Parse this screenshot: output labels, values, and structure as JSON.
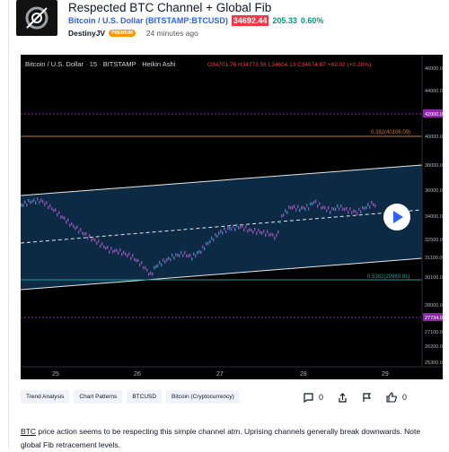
{
  "header": {
    "title": "Respected BTC Channel + Global Fib",
    "symbol": "Bitcoin / U.S. Dollar (BITSTAMP:BTCUSD)",
    "price": "34692.44",
    "change": "205.33",
    "change_pct": "0.60%",
    "author": "DestinyJV",
    "author_badge": "PREMIUM",
    "time_ago": "24 minutes ago"
  },
  "chart": {
    "legend_symbol": "Bitcoin / U.S. Dollar",
    "legend_interval": "15",
    "legend_exchange": "BITSTAMP",
    "legend_type": "Heikin Ashi",
    "legend_ohlc": "O34701.76 H34773.56 L34604.13 C34674.97 +69.02 (+0.20%)",
    "fib_upper_label": "0.382(40106.09)",
    "fib_lower_label": "0.5382(29969.81)",
    "price_labels": [
      "46000.00",
      "44000.00",
      "42000.00",
      "40000.00",
      "38000.00",
      "36000.00",
      "34000.00",
      "32500.00",
      "31100.00",
      "30100.00",
      "28000.00",
      "27734.00",
      "27100.00",
      "26200.00",
      "25300.00"
    ],
    "highlight_upper": "42000.00",
    "highlight_lower": "27734.00",
    "x_labels": [
      "25",
      "26",
      "27",
      "28",
      "29"
    ],
    "colors": {
      "background": "#000000",
      "channel_fill": "#0d2a44",
      "candle_up": "#1e90c8",
      "candle_down": "#b03ac8",
      "fib_line": "#c07a2a",
      "fib_lower": "#1a9e96",
      "highlight": "#8e24aa"
    }
  },
  "tags": [
    "Trend Analysis",
    "Chart Patterns",
    "BTCUSD",
    "Bitcoin (Cryptocurrency)"
  ],
  "actions": {
    "comments": "0",
    "boosts": "0"
  },
  "description": {
    "part1": "BTC",
    "part2": " price action seems to be respecting this simple channel atm. Uprising channels generally break downwards. Note",
    "line2": "global Fib retracement levels."
  },
  "icons": [
    "play-icon",
    "comment-icon",
    "share-icon",
    "flag-icon",
    "thumb-icon"
  ]
}
